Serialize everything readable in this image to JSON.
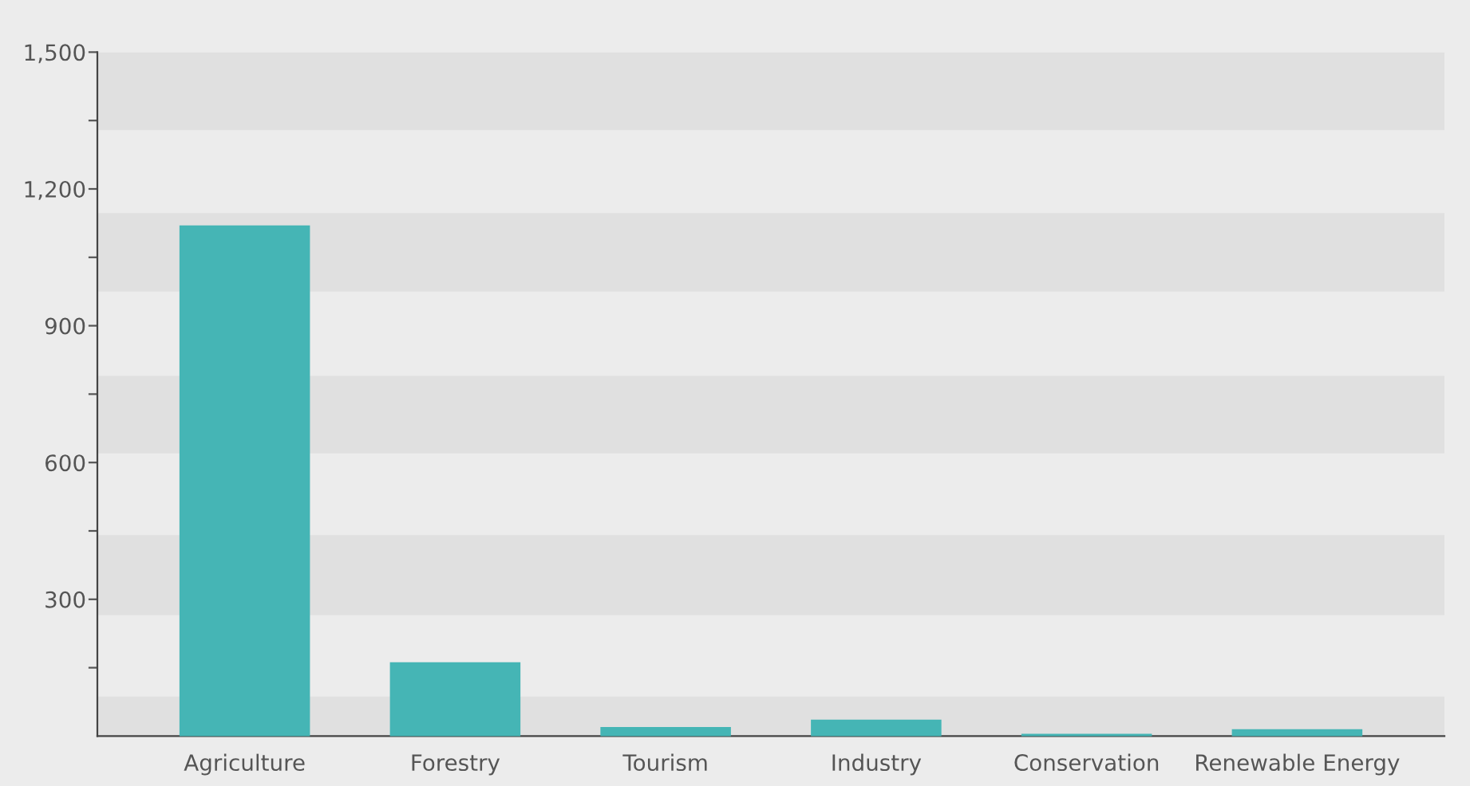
{
  "chart_data": {
    "type": "bar",
    "categories": [
      "Agriculture",
      "Forestry",
      "Tourism",
      "Industry",
      "Conservation",
      "Renewable Energy"
    ],
    "values": [
      1120,
      162,
      20,
      36,
      5,
      15
    ],
    "color": "#45b5b5",
    "ylim": [
      0,
      1500
    ],
    "yticks": [
      {
        "value": 150,
        "label": null
      },
      300,
      {
        "value": 450,
        "label": null
      },
      600,
      {
        "value": 750,
        "label": null
      },
      900,
      {
        "value": 1050,
        "label": null
      },
      {
        "value": 1200,
        "label": "1,200"
      },
      {
        "value": 1350,
        "label": null
      },
      {
        "value": 1500,
        "label": "1,500"
      }
    ],
    "bands": [
      {
        "axis": "y",
        "from": 0,
        "to": 87,
        "color": "#e0e0e0"
      },
      {
        "axis": "y",
        "from": 265,
        "to": 441,
        "color": "#e0e0e0"
      },
      {
        "axis": "y",
        "from": 620,
        "to": 790,
        "color": "#e0e0e0"
      },
      {
        "axis": "y",
        "from": 975,
        "to": 1147,
        "color": "#e0e0e0"
      },
      {
        "axis": "y",
        "from": 1329,
        "to": 1500,
        "color": "#e0e0e0"
      }
    ],
    "grid": false,
    "legend": false
  }
}
